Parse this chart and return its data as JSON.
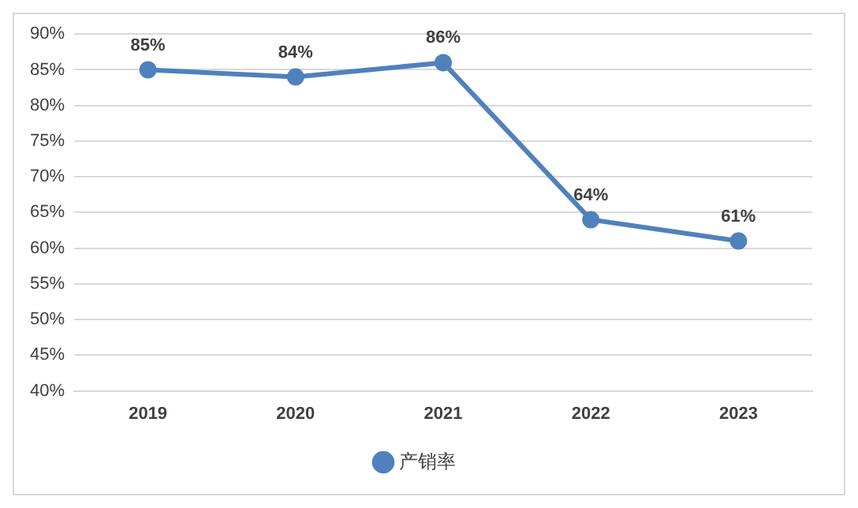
{
  "chart_data": {
    "type": "line",
    "categories": [
      "2019",
      "2020",
      "2021",
      "2022",
      "2023"
    ],
    "series": [
      {
        "name": "产销率",
        "color": "#4f81bd",
        "values": [
          85,
          84,
          86,
          64,
          61
        ],
        "value_labels": [
          "85%",
          "84%",
          "86%",
          "64%",
          "61%"
        ]
      }
    ],
    "ylim": [
      40,
      90
    ],
    "yticks": [
      {
        "value": 40,
        "label": "40%"
      },
      {
        "value": 45,
        "label": "45%"
      },
      {
        "value": 50,
        "label": "50%"
      },
      {
        "value": 55,
        "label": "55%"
      },
      {
        "value": 60,
        "label": "60%"
      },
      {
        "value": 65,
        "label": "65%"
      },
      {
        "value": 70,
        "label": "70%"
      },
      {
        "value": 75,
        "label": "75%"
      },
      {
        "value": 80,
        "label": "80%"
      },
      {
        "value": 85,
        "label": "85%"
      },
      {
        "value": 90,
        "label": "90%"
      }
    ],
    "grid": "y",
    "legend": "bottom",
    "marker": "circle",
    "line_style": "solid"
  }
}
